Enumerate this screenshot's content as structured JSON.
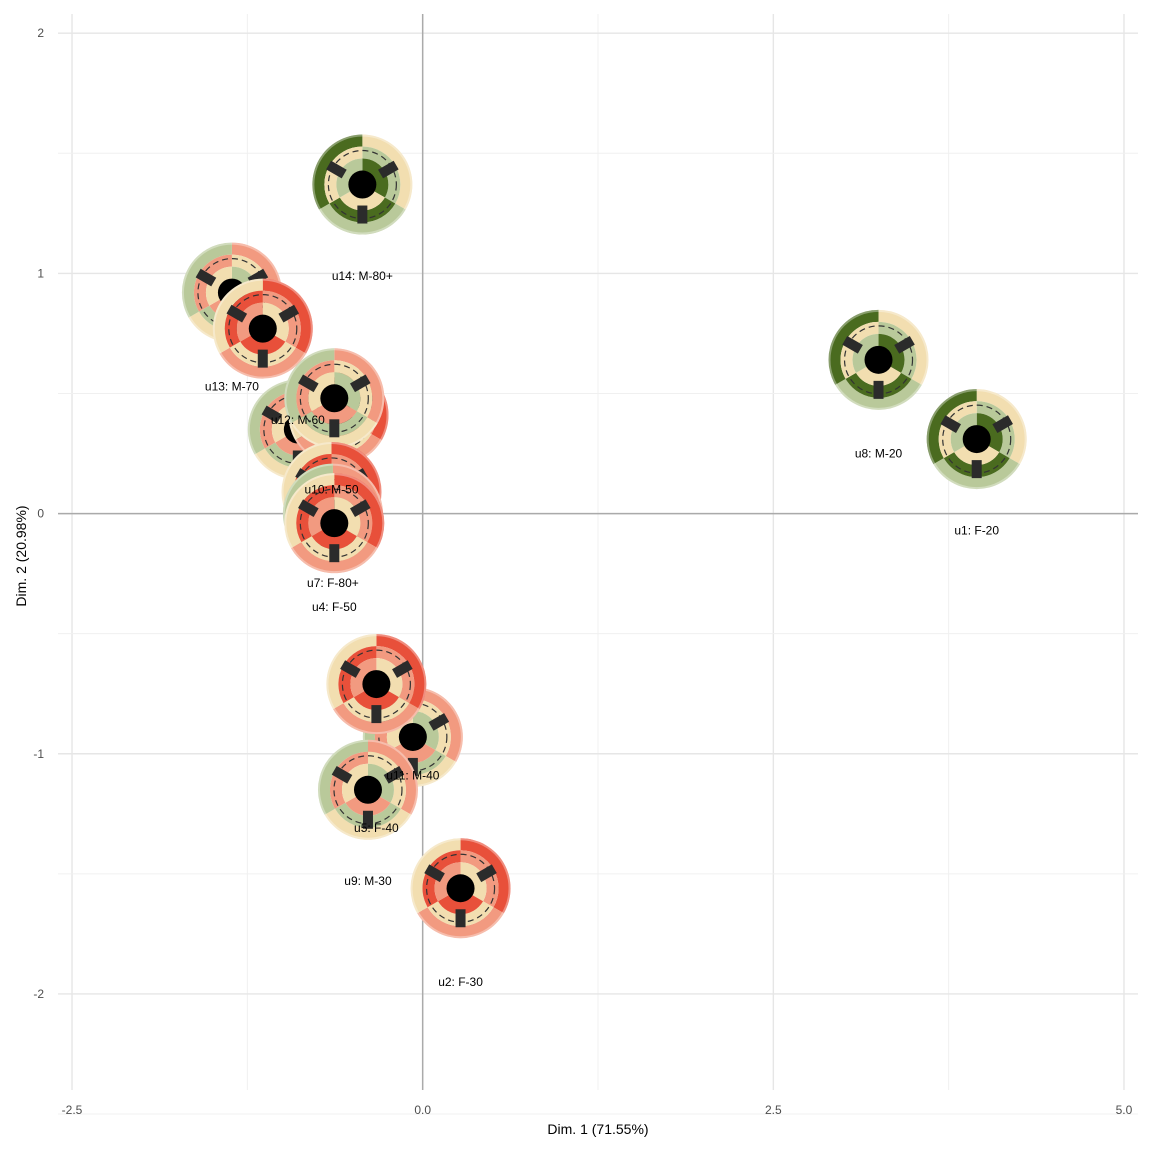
{
  "chart_data": {
    "type": "scatter",
    "title": "",
    "xlabel": "Dim. 1 (71.55%)",
    "ylabel": "Dim. 2 (20.98%)",
    "xlim": [
      -2.6,
      5.1
    ],
    "ylim": [
      -2.4,
      2.08
    ],
    "x_ticks": [
      -2.5,
      0.0,
      2.5,
      5.0
    ],
    "x_tick_labels": [
      "-2.5",
      "0.0",
      "2.5",
      "5.0"
    ],
    "y_ticks": [
      -2,
      -1,
      0,
      1,
      2
    ],
    "y_tick_labels": [
      "-2",
      "-1",
      "0",
      "1",
      "2"
    ],
    "grid": true,
    "reference_lines": {
      "x": 0,
      "y": 0
    },
    "glyph_colors": {
      "dark_green": "#4a6b1f",
      "light_green": "#b9c99a",
      "cream": "#f2deb0",
      "salmon": "#f29a80",
      "red": "#e8503a",
      "center": "#000000",
      "tick": "#2b2b2b"
    },
    "points": [
      {
        "label": "u14: M-80+",
        "x": -0.43,
        "y": 1.37,
        "label_y": 0.99
      },
      {
        "label": "u13: M-70",
        "x": -1.36,
        "y": 0.92,
        "label_y": 0.53
      },
      {
        "label": "",
        "x": -1.14,
        "y": 0.77,
        "label_y": null
      },
      {
        "label": "u12: M-60",
        "x": -0.89,
        "y": 0.35,
        "label_y": 0.39
      },
      {
        "label": "",
        "x": -0.6,
        "y": 0.41,
        "label_y": null
      },
      {
        "label": "",
        "x": -0.63,
        "y": 0.48,
        "label_y": null
      },
      {
        "label": "u10: M-50",
        "x": -0.65,
        "y": 0.09,
        "label_y": 0.1
      },
      {
        "label": "u7: F-80+",
        "x": -0.64,
        "y": 0.0,
        "label_y": -0.29
      },
      {
        "label": "u4: F-50",
        "x": -0.63,
        "y": -0.04,
        "label_y": -0.39
      },
      {
        "label": "u8: M-20",
        "x": 3.25,
        "y": 0.64,
        "label_y": 0.25
      },
      {
        "label": "u1: F-20",
        "x": 3.95,
        "y": 0.31,
        "label_y": -0.07
      },
      {
        "label": "u11: M-40",
        "x": -0.07,
        "y": -0.93,
        "label_y": -1.09
      },
      {
        "label": "u5: F-40",
        "x": -0.33,
        "y": -0.71,
        "label_y": -1.31
      },
      {
        "label": "u9: M-30",
        "x": -0.39,
        "y": -1.15,
        "label_y": -1.53
      },
      {
        "label": "u2: F-30",
        "x": 0.27,
        "y": -1.56,
        "label_y": -1.95
      }
    ]
  }
}
